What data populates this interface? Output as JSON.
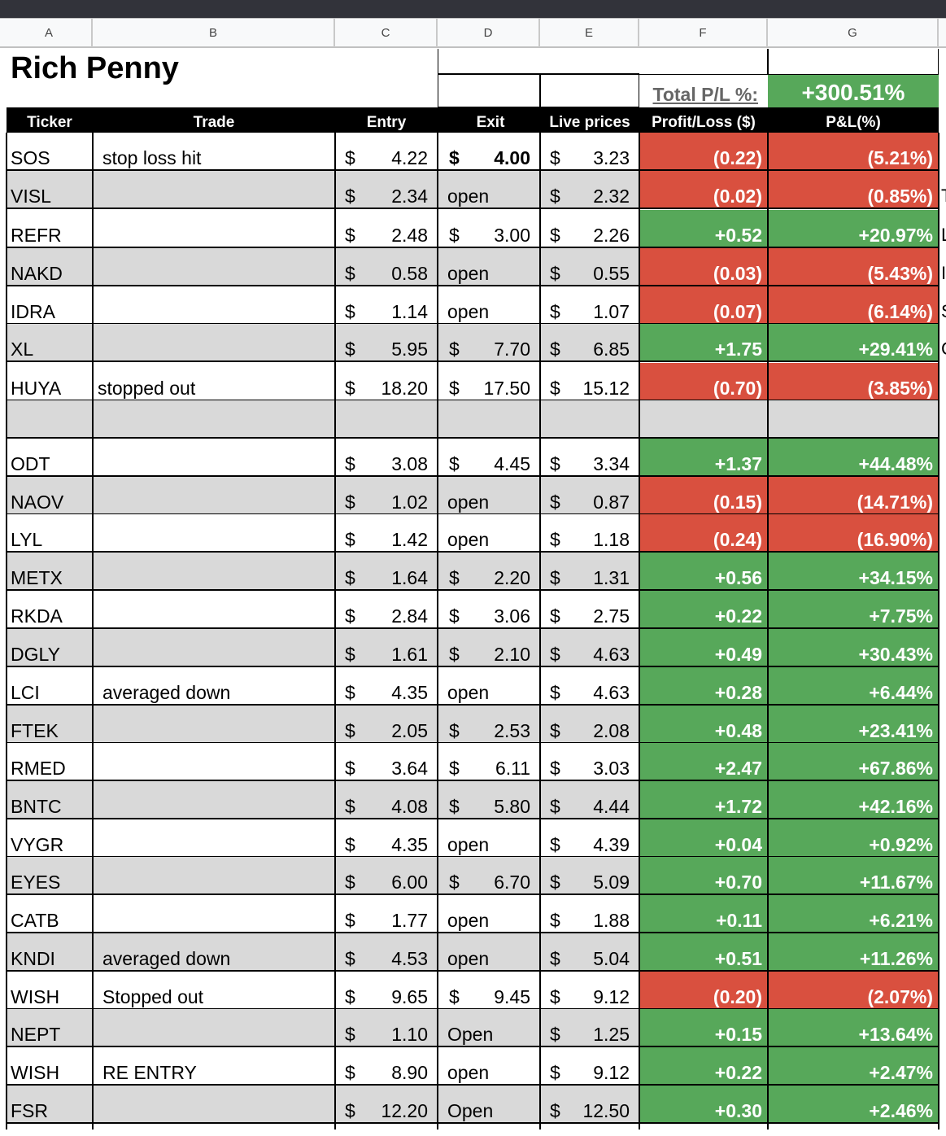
{
  "columns": [
    "A",
    "B",
    "C",
    "D",
    "E",
    "F",
    "G"
  ],
  "title": "Rich Penny",
  "total_label": "Total P/L %:",
  "total_value": "+300.51%",
  "headers": [
    "Ticker",
    "Trade",
    "Entry",
    "Exit",
    "Live prices",
    "Profit/Loss ($)",
    "P&L(%)"
  ],
  "colors": {
    "positive": "#57a85a",
    "negative": "#d9503f",
    "header_bg": "#000000",
    "alt_row": "#d9d9d9"
  },
  "rows": [
    {
      "ticker": "SOS",
      "trade": "stop loss hit",
      "entry": "4.22",
      "exit": "4.00",
      "exit_bold": true,
      "live": "3.23",
      "pl": "(0.22)",
      "pct": "(5.21%)",
      "sign": "neg",
      "edge": ""
    },
    {
      "ticker": "VISL",
      "trade": "",
      "entry": "2.34",
      "exit": "open",
      "live": "2.32",
      "pl": "(0.02)",
      "pct": "(0.85%)",
      "sign": "neg",
      "edge": "T"
    },
    {
      "ticker": "REFR",
      "trade": "",
      "entry": "2.48",
      "exit": "3.00",
      "live": "2.26",
      "pl": "+0.52",
      "pct": "+20.97%",
      "sign": "pos",
      "edge": "L"
    },
    {
      "ticker": "NAKD",
      "trade": "",
      "entry": "0.58",
      "exit": "open",
      "live": "0.55",
      "pl": "(0.03)",
      "pct": "(5.43%)",
      "sign": "neg",
      "edge": "I"
    },
    {
      "ticker": "IDRA",
      "trade": "",
      "entry": "1.14",
      "exit": "open",
      "live": "1.07",
      "pl": "(0.07)",
      "pct": "(6.14%)",
      "sign": "neg",
      "edge": "S"
    },
    {
      "ticker": "XL",
      "trade": "",
      "entry": "5.95",
      "exit": "7.70",
      "live": "6.85",
      "pl": "+1.75",
      "pct": "+29.41%",
      "sign": "pos",
      "edge": "C"
    },
    {
      "ticker": "HUYA",
      "trade": "stopped out",
      "entry": "18.20",
      "exit": "17.50",
      "live": "15.12",
      "pl": "(0.70)",
      "pct": "(3.85%)",
      "sign": "neg",
      "edge": ""
    },
    {
      "ticker": "",
      "trade": "",
      "entry": "",
      "exit": "",
      "live": "",
      "pl": "",
      "pct": "",
      "sign": "blank",
      "edge": ""
    },
    {
      "ticker": "ODT",
      "trade": "",
      "entry": "3.08",
      "exit": "4.45",
      "live": "3.34",
      "pl": "+1.37",
      "pct": "+44.48%",
      "sign": "pos",
      "edge": ""
    },
    {
      "ticker": "NAOV",
      "trade": "",
      "entry": "1.02",
      "exit": "open",
      "live": "0.87",
      "pl": "(0.15)",
      "pct": "(14.71%)",
      "sign": "neg",
      "edge": ""
    },
    {
      "ticker": "LYL",
      "trade": "",
      "entry": "1.42",
      "exit": "open",
      "live": "1.18",
      "pl": "(0.24)",
      "pct": "(16.90%)",
      "sign": "neg",
      "edge": ""
    },
    {
      "ticker": "METX",
      "trade": "",
      "entry": "1.64",
      "exit": "2.20",
      "live": "1.31",
      "pl": "+0.56",
      "pct": "+34.15%",
      "sign": "pos",
      "edge": ""
    },
    {
      "ticker": "RKDA",
      "trade": "",
      "entry": "2.84",
      "exit": "3.06",
      "live": "2.75",
      "pl": "+0.22",
      "pct": "+7.75%",
      "sign": "pos",
      "edge": ""
    },
    {
      "ticker": "DGLY",
      "trade": "",
      "entry": "1.61",
      "exit": "2.10",
      "live": "4.63",
      "pl": "+0.49",
      "pct": "+30.43%",
      "sign": "pos",
      "edge": ""
    },
    {
      "ticker": "LCI",
      "trade": "averaged down",
      "entry": "4.35",
      "exit": "open",
      "live": "4.63",
      "pl": "+0.28",
      "pct": "+6.44%",
      "sign": "pos",
      "edge": ""
    },
    {
      "ticker": "FTEK",
      "trade": "",
      "entry": "2.05",
      "exit": "2.53",
      "live": "2.08",
      "pl": "+0.48",
      "pct": "+23.41%",
      "sign": "pos",
      "edge": ""
    },
    {
      "ticker": "RMED",
      "trade": "",
      "entry": "3.64",
      "exit": "6.11",
      "live": "3.03",
      "pl": "+2.47",
      "pct": "+67.86%",
      "sign": "pos",
      "edge": ""
    },
    {
      "ticker": "BNTC",
      "trade": "",
      "entry": "4.08",
      "exit": "5.80",
      "live": "4.44",
      "pl": "+1.72",
      "pct": "+42.16%",
      "sign": "pos",
      "edge": ""
    },
    {
      "ticker": "VYGR",
      "trade": "",
      "entry": "4.35",
      "exit": "open",
      "live": "4.39",
      "pl": "+0.04",
      "pct": "+0.92%",
      "sign": "pos",
      "edge": ""
    },
    {
      "ticker": "EYES",
      "trade": "",
      "entry": "6.00",
      "exit": "6.70",
      "live": "5.09",
      "pl": "+0.70",
      "pct": "+11.67%",
      "sign": "pos",
      "edge": ""
    },
    {
      "ticker": "CATB",
      "trade": "",
      "entry": "1.77",
      "exit": "open",
      "live": "1.88",
      "pl": "+0.11",
      "pct": "+6.21%",
      "sign": "pos",
      "edge": ""
    },
    {
      "ticker": "KNDI",
      "trade": "averaged down",
      "entry": "4.53",
      "exit": "open",
      "live": "5.04",
      "pl": "+0.51",
      "pct": "+11.26%",
      "sign": "pos",
      "edge": ""
    },
    {
      "ticker": "WISH",
      "trade": "Stopped out",
      "entry": "9.65",
      "exit": "9.45",
      "live": "9.12",
      "pl": "(0.20)",
      "pct": "(2.07%)",
      "sign": "neg",
      "edge": ""
    },
    {
      "ticker": "NEPT",
      "trade": "",
      "entry": "1.10",
      "exit": "Open",
      "live": "1.25",
      "pl": "+0.15",
      "pct": "+13.64%",
      "sign": "pos",
      "edge": ""
    },
    {
      "ticker": "WISH",
      "trade": "RE ENTRY",
      "entry": "8.90",
      "exit": "open",
      "live": "9.12",
      "pl": "+0.22",
      "pct": "+2.47%",
      "sign": "pos",
      "edge": ""
    },
    {
      "ticker": "FSR",
      "trade": "",
      "entry": "12.20",
      "exit": "Open",
      "live": "12.50",
      "pl": "+0.30",
      "pct": "+2.46%",
      "sign": "pos",
      "edge": ""
    }
  ]
}
